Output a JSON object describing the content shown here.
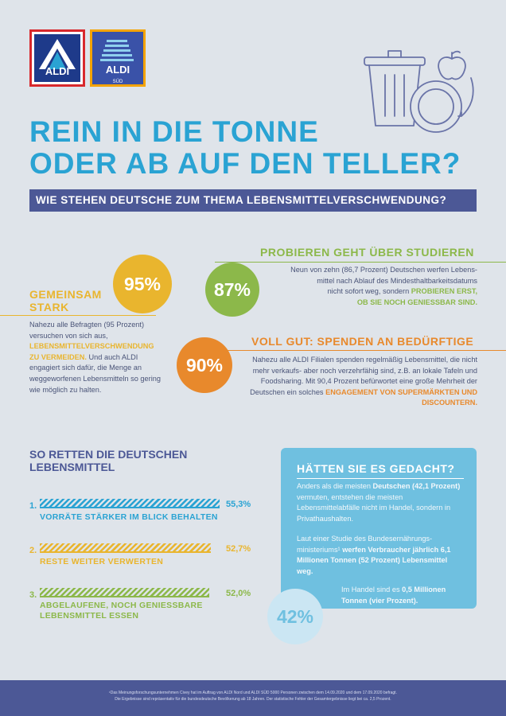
{
  "logos": {
    "aldi_nord_text": "ALDI",
    "aldi_sued_text": "ALDI",
    "aldi_sued_sub": "SÜD"
  },
  "title": {
    "line1": "REIN IN DIE TONNE",
    "line2": "ODER AB AUF DEN TELLER?"
  },
  "banner": "WIE STEHEN DEUTSCHE ZUM THEMA LEBENSMITTELVERSCHWENDUNG?",
  "section_studieren": {
    "heading": "PROBIEREN GEHT ÜBER STUDIEREN",
    "percent": "87%",
    "text_lines": [
      "Neun von zehn (86,7 Prozent) Deutschen werfen Lebens-",
      "mittel nach Ablauf des Mindesthaltbarkeitsdatums",
      "nicht sofort weg, sondern"
    ],
    "highlight1": "PROBIEREN ERST,",
    "highlight2": "OB SIE NOCH GENIESSBAR SIND."
  },
  "section_gemeinsam": {
    "heading_line1": "GEMEINSAM",
    "heading_line2": "STARK",
    "percent": "95%",
    "text1": "Nahezu alle Befragten (95 Prozent) versuchen von sich aus,",
    "highlight": "LEBENSMITTELVERSCHWENDUNG ZU VERMEIDEN.",
    "text2": "Und auch ALDI engagiert sich dafür, die Menge an weggeworfenen Lebensmitteln so gering wie möglich zu halten."
  },
  "section_spenden": {
    "heading": "VOLL GUT: SPENDEN AN BEDÜRFTIGE",
    "percent": "90%",
    "text1": "Nahezu alle ALDI Filialen spenden regelmäßig Lebensmittel, die nicht mehr verkaufs- aber noch verzehrfähig sind, z.B. an lokale Tafeln und Foodsharing. Mit 90,4 Prozent befürwortet eine große Mehrheit der Deutschen ein solches",
    "highlight": "ENGAGEMENT VON SUPERMÄRKTEN UND DISCOUNTERN."
  },
  "stats": {
    "title_line1": "SO RETTEN DIE DEUTSCHEN",
    "title_line2": "LEBENSMITTEL",
    "items": [
      {
        "num": "1.",
        "label_line1": "VORRÄTE STÄRKER IM BLICK BEHALTEN",
        "label_line2": "",
        "value_text": "55,3%",
        "value": 55.3,
        "color": "#2aa3d3"
      },
      {
        "num": "2.",
        "label_line1": "RESTE WEITER VERWERTEN",
        "label_line2": "",
        "value_text": "52,7%",
        "value": 52.7,
        "color": "#e9b52e"
      },
      {
        "num": "3.",
        "label_line1": "ABGELAUFENE, NOCH GENIESSBARE",
        "label_line2": "LEBENSMITTEL ESSEN",
        "value_text": "52,0%",
        "value": 52.0,
        "color": "#8cb84a"
      }
    ]
  },
  "infobox": {
    "heading": "HÄTTEN SIE ES GEDACHT?",
    "p1_pre": "Anders als die meisten",
    "p1_bold": "Deutschen (42,1 Prozent)",
    "p1_post": "vermuten, entstehen die meisten Lebensmittelabfälle nicht im Handel, sondern in Privathaushalten.",
    "p2_pre": "Laut einer Studie des Bundesernährungs-ministeriums¹",
    "p2_bold": "werfen Verbraucher jährlich 6,1 Millionen Tonnen (52 Prozent) Lebensmittel weg.",
    "p3_pre": "Im Handel sind es",
    "p3_bold": "0,5 Millionen Tonnen (vier Prozent).",
    "percent": "42%"
  },
  "footer": {
    "line1": "¹Das Meinungsforschungsunternehmen Civey hat im Auftrag von ALDI Nord und ALDI SÜD 5000 Personen zwischen dem 14.09.2020 und dem 17.09.2020 befragt.",
    "line2": "Die Ergebnisse sind repräsentativ für die bundesdeutsche Bevölkerung ab 18 Jahren. Der statistische Fehler der Gesamtergebnisse liegt bei ca. 2,5 Prozent."
  },
  "colors": {
    "blue": "#2aa3d3",
    "navy": "#4c5896",
    "yellow": "#e9b52e",
    "green": "#8cb84a",
    "orange": "#e8892c",
    "light_blue": "#6fc0e0"
  }
}
